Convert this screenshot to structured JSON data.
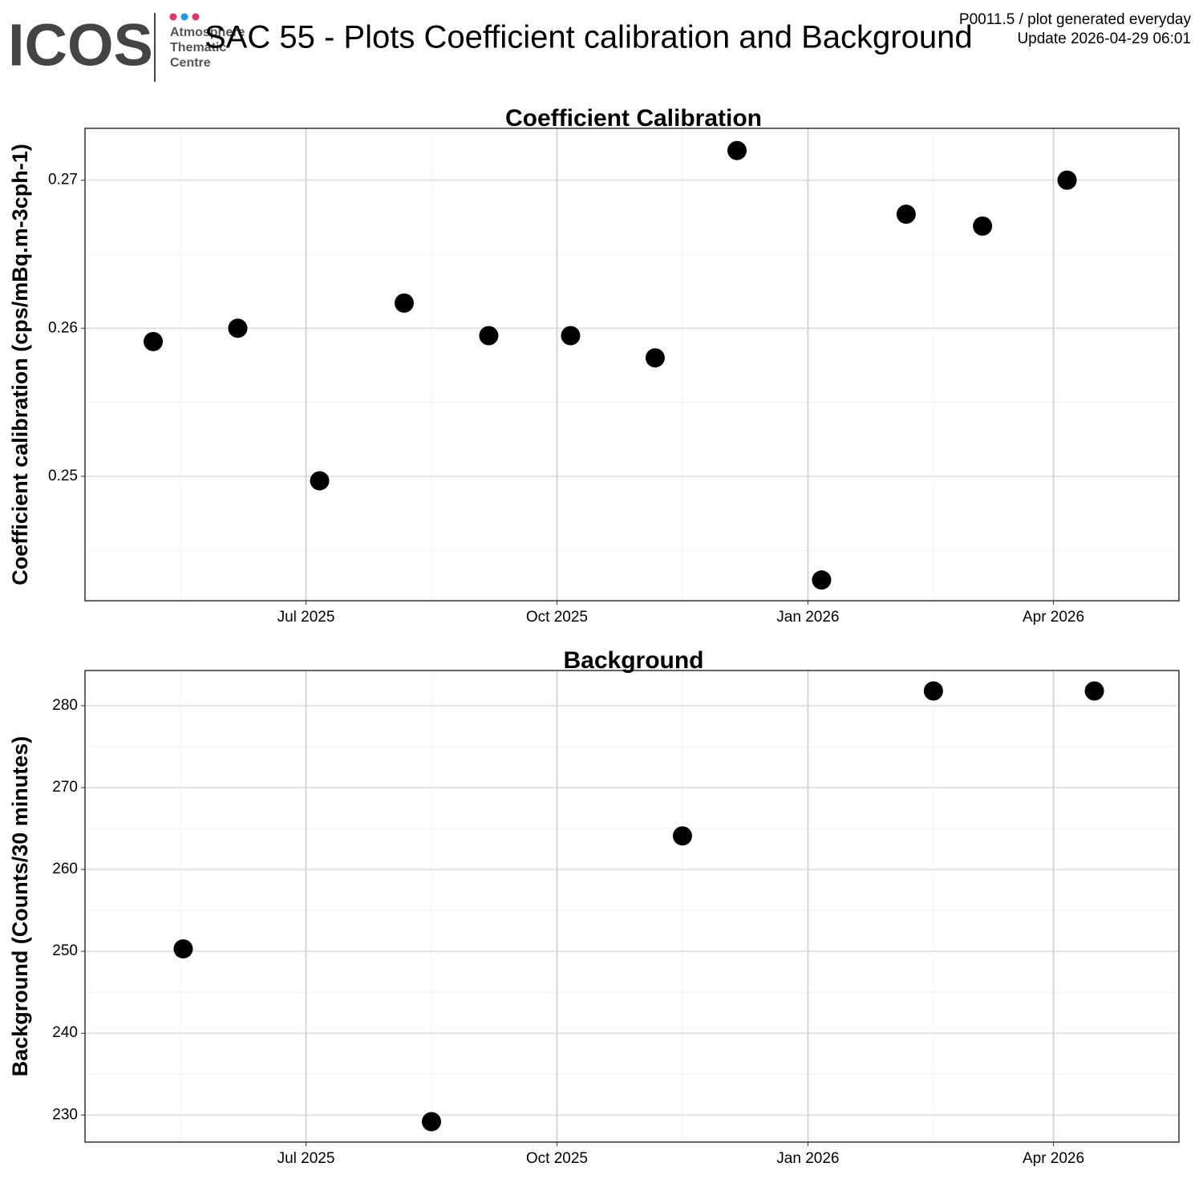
{
  "header": {
    "logo": "ICOS",
    "logo_lines": [
      "Atmosphere",
      "Thematic",
      "Centre"
    ],
    "title": "SAC 55 - Plots Coefficient calibration and Background",
    "note": "P0011.5 / plot generated everyday",
    "update": "Update  2026-04-29 06:01"
  },
  "chart_data": [
    {
      "type": "scatter",
      "title": "Coefficient Calibration",
      "y_label": "Coefficient calibration (cps/mBq.m-3cph-1)",
      "color": "#000000",
      "grid": true,
      "x": [
        "2025-05-06",
        "2025-06-06",
        "2025-07-06",
        "2025-08-06",
        "2025-09-06",
        "2025-10-06",
        "2025-11-06",
        "2025-12-06",
        "2026-01-06",
        "2026-02-06",
        "2026-03-06",
        "2026-04-06"
      ],
      "values": [
        0.2591,
        0.26,
        0.2497,
        0.2617,
        0.2595,
        0.2595,
        0.258,
        0.272,
        0.243,
        0.2677,
        0.2669,
        0.27
      ],
      "xlim": [
        "2025-04-11",
        "2026-05-17"
      ],
      "xticks": [
        {
          "value": "2025-07-01",
          "label": "Jul 2025"
        },
        {
          "value": "2025-10-01",
          "label": "Oct 2025"
        },
        {
          "value": "2026-01-01",
          "label": "Jan 2026"
        },
        {
          "value": "2026-04-01",
          "label": "Apr 2026"
        }
      ],
      "ylim": [
        0.2416,
        0.2735
      ],
      "yticks": [
        0.25,
        0.26,
        0.27
      ]
    },
    {
      "type": "scatter",
      "title": "Background",
      "y_label": "Background (Counts/30 minutes)",
      "color": "#000000",
      "grid": true,
      "x": [
        "2025-05-17",
        "2025-08-16",
        "2025-11-16",
        "2026-02-16",
        "2026-04-16"
      ],
      "values": [
        250.3,
        229.2,
        264.1,
        281.8,
        281.8
      ],
      "xlim": [
        "2025-04-11",
        "2026-05-17"
      ],
      "xticks": [
        {
          "value": "2025-07-01",
          "label": "Jul 2025"
        },
        {
          "value": "2025-10-01",
          "label": "Oct 2025"
        },
        {
          "value": "2026-01-01",
          "label": "Jan 2026"
        },
        {
          "value": "2026-04-01",
          "label": "Apr 2026"
        }
      ],
      "ylim": [
        226.7,
        284.3
      ],
      "yticks": [
        230,
        240,
        250,
        260,
        270,
        280
      ]
    }
  ]
}
